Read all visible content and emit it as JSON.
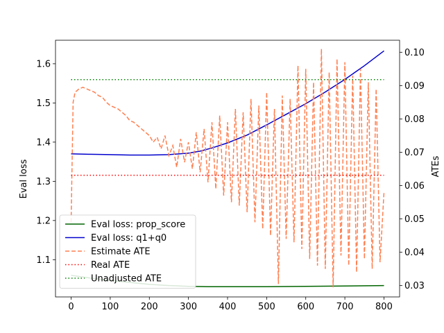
{
  "chart_data": {
    "type": "line",
    "title": "",
    "xlabel": "",
    "ylabel": "Eval loss",
    "y2label": "ATEs",
    "xlim": [
      -40,
      840
    ],
    "ylim": [
      1.005,
      1.66
    ],
    "y2lim": [
      0.0266,
      0.1036
    ],
    "xticks": [
      0,
      100,
      200,
      300,
      400,
      500,
      600,
      700,
      800
    ],
    "yticks": [
      1.1,
      1.2,
      1.3,
      1.4,
      1.5,
      1.6
    ],
    "y2ticks": [
      0.03,
      0.04,
      0.05,
      0.06,
      0.07,
      0.08,
      0.09,
      0.1
    ],
    "xtick_labels": [
      "0",
      "100",
      "200",
      "300",
      "400",
      "500",
      "600",
      "700",
      "800"
    ],
    "ytick_labels": [
      "1.1",
      "1.2",
      "1.3",
      "1.4",
      "1.5",
      "1.6"
    ],
    "y2tick_labels": [
      "0.03",
      "0.04",
      "0.05",
      "0.06",
      "0.07",
      "0.08",
      "0.09",
      "0.10"
    ],
    "grid": false,
    "legend_position": "lower-left",
    "series": [
      {
        "name": "Eval loss: prop_score",
        "axis": "left",
        "color": "#006400",
        "style": "solid",
        "x": [
          0,
          50,
          100,
          150,
          200,
          250,
          300,
          350,
          400,
          500,
          600,
          700,
          800
        ],
        "y": [
          1.06,
          1.053,
          1.047,
          1.042,
          1.037,
          1.034,
          1.032,
          1.031,
          1.031,
          1.031,
          1.032,
          1.033,
          1.034
        ]
      },
      {
        "name": "Eval loss: q1+q0",
        "axis": "left",
        "color": "#0000cd",
        "style": "solid",
        "x": [
          0,
          50,
          100,
          150,
          200,
          250,
          300,
          330,
          360,
          400,
          450,
          500,
          550,
          600,
          650,
          700,
          750,
          800
        ],
        "y": [
          1.37,
          1.369,
          1.368,
          1.367,
          1.367,
          1.368,
          1.372,
          1.377,
          1.385,
          1.398,
          1.418,
          1.444,
          1.471,
          1.498,
          1.528,
          1.56,
          1.595,
          1.633
        ]
      },
      {
        "name": "Estimate ATE",
        "axis": "right",
        "color": "#ff7f50",
        "style": "dashed",
        "x": [
          0,
          5,
          10,
          20,
          30,
          40,
          50,
          60,
          70,
          80,
          90,
          100,
          110,
          120,
          130,
          140,
          150,
          160,
          170,
          180,
          190,
          200,
          210,
          220,
          230,
          240,
          250,
          260,
          270,
          280,
          290,
          300,
          310,
          320,
          330,
          340,
          350,
          360,
          370,
          380,
          390,
          400,
          410,
          420,
          430,
          440,
          450,
          460,
          470,
          480,
          490,
          500,
          510,
          520,
          530,
          540,
          550,
          560,
          570,
          580,
          590,
          600,
          610,
          620,
          630,
          640,
          650,
          660,
          670,
          680,
          690,
          700,
          710,
          720,
          730,
          740,
          750,
          760,
          770,
          780,
          790,
          800
        ],
        "y": [
          0.049,
          0.085,
          0.088,
          0.089,
          0.0895,
          0.089,
          0.0885,
          0.088,
          0.087,
          0.0865,
          0.085,
          0.084,
          0.0835,
          0.083,
          0.082,
          0.081,
          0.0795,
          0.079,
          0.078,
          0.077,
          0.076,
          0.075,
          0.073,
          0.0745,
          0.071,
          0.075,
          0.069,
          0.072,
          0.0655,
          0.074,
          0.067,
          0.073,
          0.065,
          0.076,
          0.064,
          0.077,
          0.061,
          0.079,
          0.059,
          0.081,
          0.057,
          0.079,
          0.055,
          0.083,
          0.054,
          0.082,
          0.052,
          0.086,
          0.049,
          0.084,
          0.047,
          0.088,
          0.045,
          0.083,
          0.0305,
          0.087,
          0.044,
          0.086,
          0.043,
          0.096,
          0.041,
          0.095,
          0.038,
          0.091,
          0.036,
          0.101,
          0.035,
          0.094,
          0.0295,
          0.098,
          0.039,
          0.097,
          0.036,
          0.093,
          0.034,
          0.095,
          0.038,
          0.091,
          0.035,
          0.089,
          0.037,
          0.058
        ]
      },
      {
        "name": "Real ATE",
        "axis": "right",
        "color": "#ff0000",
        "style": "dotted",
        "x": [
          0,
          800
        ],
        "y": [
          0.0631,
          0.0631
        ]
      },
      {
        "name": "Unadjusted ATE",
        "axis": "right",
        "color": "#008000",
        "style": "dotted",
        "x": [
          0,
          800
        ],
        "y": [
          0.0918,
          0.0918
        ]
      }
    ]
  }
}
